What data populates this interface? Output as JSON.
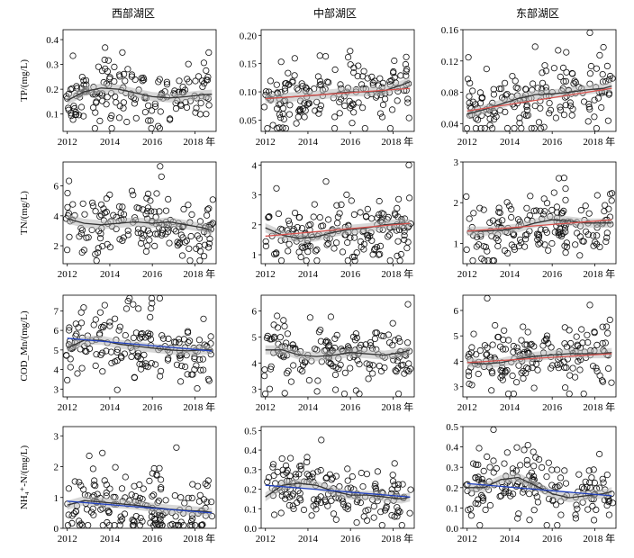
{
  "figure": {
    "column_titles": [
      "西部湖区",
      "中部湖区",
      "东部湖区"
    ],
    "x_tick_labels": [
      "2012",
      "2014",
      "2016",
      "2018 年"
    ],
    "colors": {
      "points": "#111111",
      "band": "#b8b8b8",
      "smooth": "#333333",
      "trend_red": "#d9534f",
      "trend_blue": "#1f3fbf"
    }
  },
  "chart_data": [
    {
      "type": "scatter",
      "row": 0,
      "col": 0,
      "ylabel": "TP/(mg/L)",
      "ylim": [
        0.03,
        0.44
      ],
      "yticks": [
        0.1,
        0.2,
        0.3,
        0.4
      ],
      "ytick_labels": [
        "0.1",
        "0.2",
        "0.3",
        "0.4"
      ],
      "xlim": [
        2011.8,
        2019.0
      ],
      "base": 0.17,
      "spread": 0.07,
      "smooth": [
        [
          2012.0,
          0.155
        ],
        [
          2012.8,
          0.19
        ],
        [
          2013.6,
          0.205
        ],
        [
          2014.4,
          0.2
        ],
        [
          2015.2,
          0.185
        ],
        [
          2016.0,
          0.17
        ],
        [
          2016.8,
          0.165
        ],
        [
          2017.6,
          0.17
        ],
        [
          2018.4,
          0.178
        ],
        [
          2018.8,
          0.18
        ]
      ],
      "trend": null
    },
    {
      "type": "scatter",
      "row": 0,
      "col": 1,
      "ylabel": "",
      "ylim": [
        0.03,
        0.21
      ],
      "yticks": [
        0.05,
        0.1,
        0.15,
        0.2
      ],
      "ytick_labels": [
        "0.05",
        "0.10",
        "0.15",
        "0.20"
      ],
      "xlim": [
        2011.8,
        2019.0
      ],
      "base": 0.097,
      "spread": 0.035,
      "smooth": [
        [
          2012.0,
          0.088
        ],
        [
          2012.8,
          0.09
        ],
        [
          2013.6,
          0.092
        ],
        [
          2014.4,
          0.094
        ],
        [
          2015.2,
          0.097
        ],
        [
          2016.0,
          0.1
        ],
        [
          2016.8,
          0.1
        ],
        [
          2017.6,
          0.102
        ],
        [
          2018.4,
          0.112
        ],
        [
          2018.8,
          0.118
        ]
      ],
      "trend": {
        "color_key": "trend_red",
        "start": [
          2012.0,
          0.088
        ],
        "end": [
          2018.8,
          0.106
        ]
      }
    },
    {
      "type": "scatter",
      "row": 0,
      "col": 2,
      "ylabel": "",
      "ylim": [
        0.03,
        0.16
      ],
      "yticks": [
        0.04,
        0.08,
        0.12,
        0.16
      ],
      "ytick_labels": [
        "0.04",
        "0.08",
        "0.12",
        "0.16"
      ],
      "xlim": [
        2011.8,
        2019.0
      ],
      "base": 0.072,
      "spread": 0.027,
      "smooth": [
        [
          2012.0,
          0.052
        ],
        [
          2012.8,
          0.058
        ],
        [
          2013.6,
          0.065
        ],
        [
          2014.4,
          0.072
        ],
        [
          2015.2,
          0.077
        ],
        [
          2016.0,
          0.078
        ],
        [
          2016.8,
          0.08
        ],
        [
          2017.6,
          0.083
        ],
        [
          2018.4,
          0.085
        ],
        [
          2018.8,
          0.088
        ]
      ],
      "trend": {
        "color_key": "trend_red",
        "start": [
          2012.0,
          0.056
        ],
        "end": [
          2018.8,
          0.085
        ]
      }
    },
    {
      "type": "scatter",
      "row": 1,
      "col": 0,
      "ylabel": "TN/(mg/L)",
      "ylim": [
        0.8,
        7.6
      ],
      "yticks": [
        2,
        4,
        6
      ],
      "ytick_labels": [
        "2",
        "4",
        "6"
      ],
      "xlim": [
        2011.8,
        2019.0
      ],
      "base": 3.6,
      "spread": 1.4,
      "smooth": [
        [
          2012.0,
          3.8
        ],
        [
          2012.8,
          3.5
        ],
        [
          2013.6,
          3.4
        ],
        [
          2014.4,
          3.5
        ],
        [
          2015.2,
          3.6
        ],
        [
          2016.0,
          3.5
        ],
        [
          2016.8,
          3.6
        ],
        [
          2017.6,
          3.4
        ],
        [
          2018.4,
          3.2
        ],
        [
          2018.8,
          3.0
        ]
      ],
      "trend": null
    },
    {
      "type": "scatter",
      "row": 1,
      "col": 1,
      "ylabel": "",
      "ylim": [
        0.7,
        4.1
      ],
      "yticks": [
        1,
        2,
        3,
        4
      ],
      "ytick_labels": [
        "1",
        "2",
        "3",
        "4"
      ],
      "xlim": [
        2011.8,
        2019.0
      ],
      "base": 1.8,
      "spread": 0.65,
      "smooth": [
        [
          2012.0,
          1.9
        ],
        [
          2012.8,
          1.65
        ],
        [
          2013.6,
          1.55
        ],
        [
          2014.4,
          1.6
        ],
        [
          2015.2,
          1.75
        ],
        [
          2016.0,
          1.85
        ],
        [
          2016.8,
          1.9
        ],
        [
          2017.6,
          2.0
        ],
        [
          2018.4,
          2.05
        ],
        [
          2018.8,
          2.05
        ]
      ],
      "trend": {
        "color_key": "trend_red",
        "start": [
          2012.0,
          1.62
        ],
        "end": [
          2018.8,
          2.05
        ]
      }
    },
    {
      "type": "scatter",
      "row": 1,
      "col": 2,
      "ylabel": "",
      "ylim": [
        0.5,
        3.0
      ],
      "yticks": [
        1,
        2,
        3
      ],
      "ytick_labels": [
        "1",
        "2",
        "3"
      ],
      "xlim": [
        2011.8,
        2019.0
      ],
      "base": 1.45,
      "spread": 0.5,
      "smooth": [
        [
          2012.0,
          1.3
        ],
        [
          2012.8,
          1.3
        ],
        [
          2013.6,
          1.32
        ],
        [
          2014.4,
          1.38
        ],
        [
          2015.2,
          1.5
        ],
        [
          2016.0,
          1.58
        ],
        [
          2016.8,
          1.55
        ],
        [
          2017.6,
          1.5
        ],
        [
          2018.4,
          1.5
        ],
        [
          2018.8,
          1.5
        ]
      ],
      "trend": {
        "color_key": "trend_red",
        "start": [
          2012.0,
          1.3
        ],
        "end": [
          2018.8,
          1.58
        ]
      }
    },
    {
      "type": "scatter",
      "row": 2,
      "col": 0,
      "ylabel": "COD_Mn/(mg/L)",
      "ylim": [
        2.6,
        7.8
      ],
      "yticks": [
        3,
        4,
        5,
        6,
        7
      ],
      "ytick_labels": [
        "3",
        "4",
        "5",
        "6",
        "7"
      ],
      "xlim": [
        2011.8,
        2019.0
      ],
      "base": 5.0,
      "spread": 1.0,
      "smooth": [
        [
          2012.0,
          5.1
        ],
        [
          2012.8,
          5.5
        ],
        [
          2013.6,
          5.5
        ],
        [
          2014.4,
          5.3
        ],
        [
          2015.2,
          5.2
        ],
        [
          2016.0,
          5.1
        ],
        [
          2016.8,
          5.0
        ],
        [
          2017.6,
          4.95
        ],
        [
          2018.4,
          5.0
        ],
        [
          2018.8,
          5.0
        ]
      ],
      "trend": {
        "color_key": "trend_blue",
        "start": [
          2012.0,
          5.6
        ],
        "end": [
          2018.8,
          4.95
        ]
      }
    },
    {
      "type": "scatter",
      "row": 2,
      "col": 1,
      "ylabel": "",
      "ylim": [
        2.7,
        6.6
      ],
      "yticks": [
        3,
        4,
        5,
        6
      ],
      "ytick_labels": [
        "3",
        "4",
        "5",
        "6"
      ],
      "xlim": [
        2011.8,
        2019.0
      ],
      "base": 4.4,
      "spread": 0.8,
      "smooth": [
        [
          2012.0,
          4.5
        ],
        [
          2012.8,
          4.5
        ],
        [
          2013.6,
          4.3
        ],
        [
          2014.4,
          4.25
        ],
        [
          2015.2,
          4.3
        ],
        [
          2016.0,
          4.4
        ],
        [
          2016.8,
          4.35
        ],
        [
          2017.6,
          4.3
        ],
        [
          2018.4,
          4.4
        ],
        [
          2018.8,
          4.5
        ]
      ],
      "trend": null
    },
    {
      "type": "scatter",
      "row": 2,
      "col": 2,
      "ylabel": "",
      "ylim": [
        2.6,
        6.6
      ],
      "yticks": [
        3,
        4,
        5,
        6
      ],
      "ytick_labels": [
        "3",
        "4",
        "5",
        "6"
      ],
      "xlim": [
        2011.8,
        2019.0
      ],
      "base": 4.1,
      "spread": 0.8,
      "smooth": [
        [
          2012.0,
          3.95
        ],
        [
          2012.8,
          3.9
        ],
        [
          2013.6,
          3.95
        ],
        [
          2014.4,
          4.1
        ],
        [
          2015.2,
          4.2
        ],
        [
          2016.0,
          4.25
        ],
        [
          2016.8,
          4.3
        ],
        [
          2017.6,
          4.3
        ],
        [
          2018.4,
          4.3
        ],
        [
          2018.8,
          4.35
        ]
      ],
      "trend": {
        "color_key": "trend_red",
        "start": [
          2012.0,
          3.95
        ],
        "end": [
          2018.8,
          4.3
        ]
      }
    },
    {
      "type": "scatter",
      "row": 3,
      "col": 0,
      "ylabel": "NH₄⁺-N/(mg/L)",
      "ylim": [
        0.0,
        3.3
      ],
      "yticks": [
        0,
        1,
        2,
        3
      ],
      "ytick_labels": [
        "0",
        "1",
        "2",
        "3"
      ],
      "xlim": [
        2011.8,
        2019.0
      ],
      "base": 0.7,
      "spread": 0.7,
      "smooth": [
        [
          2012.0,
          0.75
        ],
        [
          2012.8,
          0.9
        ],
        [
          2013.6,
          0.85
        ],
        [
          2014.4,
          0.8
        ],
        [
          2015.2,
          0.75
        ],
        [
          2016.0,
          0.68
        ],
        [
          2016.8,
          0.62
        ],
        [
          2017.6,
          0.58
        ],
        [
          2018.4,
          0.55
        ],
        [
          2018.8,
          0.52
        ]
      ],
      "trend": {
        "color_key": "trend_blue",
        "start": [
          2012.0,
          0.88
        ],
        "end": [
          2018.8,
          0.5
        ]
      }
    },
    {
      "type": "scatter",
      "row": 3,
      "col": 1,
      "ylabel": "",
      "ylim": [
        0.0,
        0.52
      ],
      "yticks": [
        0.0,
        0.1,
        0.2,
        0.3,
        0.4,
        0.5
      ],
      "ytick_labels": [
        "0.0",
        "0.1",
        "0.2",
        "0.3",
        "0.4",
        "0.5"
      ],
      "xlim": [
        2011.8,
        2019.0
      ],
      "base": 0.19,
      "spread": 0.09,
      "smooth": [
        [
          2012.0,
          0.16
        ],
        [
          2012.8,
          0.22
        ],
        [
          2013.6,
          0.23
        ],
        [
          2014.4,
          0.22
        ],
        [
          2015.2,
          0.19
        ],
        [
          2016.0,
          0.17
        ],
        [
          2016.8,
          0.17
        ],
        [
          2017.6,
          0.16
        ],
        [
          2018.4,
          0.15
        ],
        [
          2018.8,
          0.16
        ]
      ],
      "trend": {
        "color_key": "trend_blue",
        "start": [
          2012.0,
          0.22
        ],
        "end": [
          2018.8,
          0.16
        ]
      }
    },
    {
      "type": "scatter",
      "row": 3,
      "col": 2,
      "ylabel": "",
      "ylim": [
        0.0,
        0.5
      ],
      "yticks": [
        0.0,
        0.1,
        0.2,
        0.3,
        0.4,
        0.5
      ],
      "ytick_labels": [
        "0.0",
        "0.1",
        "0.2",
        "0.3",
        "0.4",
        "0.5"
      ],
      "xlim": [
        2011.8,
        2019.0
      ],
      "base": 0.19,
      "spread": 0.09,
      "smooth": [
        [
          2012.0,
          0.2
        ],
        [
          2012.8,
          0.2
        ],
        [
          2013.6,
          0.24
        ],
        [
          2014.4,
          0.25
        ],
        [
          2015.2,
          0.21
        ],
        [
          2016.0,
          0.17
        ],
        [
          2016.8,
          0.15
        ],
        [
          2017.6,
          0.16
        ],
        [
          2018.4,
          0.17
        ],
        [
          2018.8,
          0.18
        ]
      ],
      "trend": {
        "color_key": "trend_blue",
        "start": [
          2012.0,
          0.22
        ],
        "end": [
          2018.8,
          0.16
        ]
      }
    }
  ]
}
